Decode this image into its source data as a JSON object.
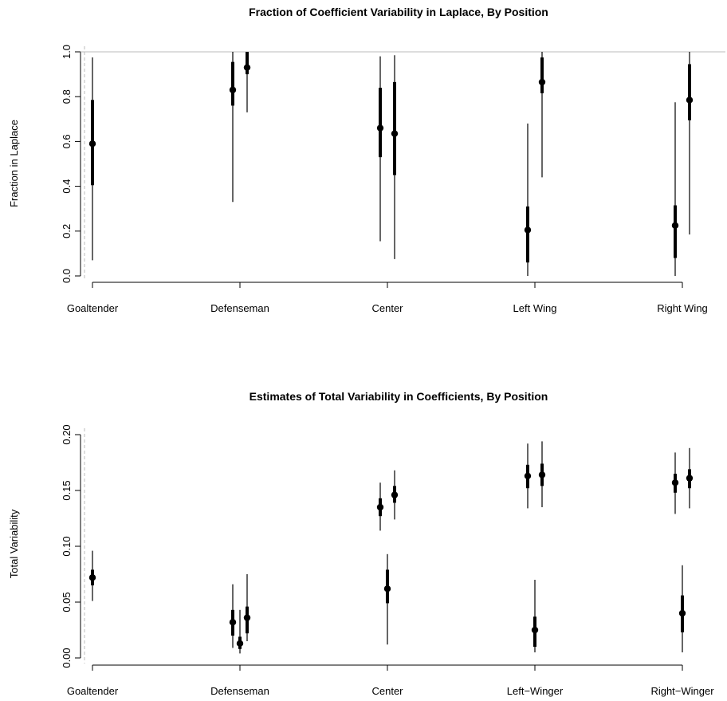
{
  "chart_data": [
    {
      "type": "scatter",
      "title": "Fraction of Coefficient Variability in Laplace, By Position",
      "xlabel": "",
      "ylabel": "Fraction in Laplace",
      "ylim": [
        0,
        1
      ],
      "yticks": [
        0.0,
        0.2,
        0.4,
        0.6,
        0.8,
        1.0
      ],
      "ytick_labels": [
        "0.0",
        "0.2",
        "0.4",
        "0.6",
        "0.8",
        "1.0"
      ],
      "categories": [
        "Goaltender",
        "Defenseman",
        "Center",
        "Left Wing",
        "Right Wing"
      ],
      "reference_line": 1.0,
      "points": [
        {
          "category": "Goaltender",
          "offset": 0,
          "estimate": 0.59,
          "inner": [
            0.405,
            0.785
          ],
          "outer": [
            0.07,
            0.975
          ]
        },
        {
          "category": "Defenseman",
          "offset": -1,
          "estimate": 0.83,
          "inner": [
            0.76,
            0.955
          ],
          "outer": [
            0.33,
            1.0
          ]
        },
        {
          "category": "Defenseman",
          "offset": 1,
          "estimate": 0.93,
          "inner": [
            0.9,
            1.0
          ],
          "outer": [
            0.73,
            1.0
          ]
        },
        {
          "category": "Center",
          "offset": -1,
          "estimate": 0.66,
          "inner": [
            0.53,
            0.84
          ],
          "outer": [
            0.155,
            0.98
          ]
        },
        {
          "category": "Center",
          "offset": 1,
          "estimate": 0.635,
          "inner": [
            0.45,
            0.865
          ],
          "outer": [
            0.075,
            0.985
          ]
        },
        {
          "category": "Left Wing",
          "offset": -1,
          "estimate": 0.205,
          "inner": [
            0.06,
            0.31
          ],
          "outer": [
            0.0,
            0.68
          ]
        },
        {
          "category": "Left Wing",
          "offset": 1,
          "estimate": 0.865,
          "inner": [
            0.815,
            0.975
          ],
          "outer": [
            0.44,
            1.0
          ]
        },
        {
          "category": "Right Wing",
          "offset": -1,
          "estimate": 0.225,
          "inner": [
            0.08,
            0.315
          ],
          "outer": [
            0.0,
            0.775
          ]
        },
        {
          "category": "Right Wing",
          "offset": 1,
          "estimate": 0.785,
          "inner": [
            0.695,
            0.945
          ],
          "outer": [
            0.185,
            1.0
          ]
        }
      ]
    },
    {
      "type": "scatter",
      "title": "Estimates of Total Variability in Coefficients, By Position",
      "xlabel": "",
      "ylabel": "Total Variability",
      "ylim": [
        0,
        0.2
      ],
      "yticks": [
        0.0,
        0.05,
        0.1,
        0.15,
        0.2
      ],
      "ytick_labels": [
        "0.00",
        "0.05",
        "0.10",
        "0.15",
        "0.20"
      ],
      "categories": [
        "Goaltender",
        "Defenseman",
        "Center",
        "Left−Winger",
        "Right−Winger"
      ],
      "points": [
        {
          "category": "Goaltender",
          "offset": 0,
          "estimate": 0.072,
          "inner": [
            0.065,
            0.079
          ],
          "outer": [
            0.051,
            0.096
          ]
        },
        {
          "category": "Defenseman",
          "offset": -1,
          "estimate": 0.032,
          "inner": [
            0.02,
            0.043
          ],
          "outer": [
            0.009,
            0.066
          ]
        },
        {
          "category": "Defenseman",
          "offset": 0,
          "estimate": 0.013,
          "inner": [
            0.008,
            0.019
          ],
          "outer": [
            0.004,
            0.043
          ]
        },
        {
          "category": "Defenseman",
          "offset": 1,
          "estimate": 0.036,
          "inner": [
            0.022,
            0.046
          ],
          "outer": [
            0.015,
            0.075
          ]
        },
        {
          "category": "Center",
          "offset": -1,
          "estimate": 0.135,
          "inner": [
            0.127,
            0.143
          ],
          "outer": [
            0.114,
            0.157
          ]
        },
        {
          "category": "Center",
          "offset": 1,
          "estimate": 0.146,
          "inner": [
            0.139,
            0.154
          ],
          "outer": [
            0.124,
            0.168
          ]
        },
        {
          "category": "Center",
          "offset": 0,
          "estimate": 0.062,
          "inner": [
            0.049,
            0.079
          ],
          "outer": [
            0.012,
            0.093
          ]
        },
        {
          "category": "Left−Winger",
          "offset": -1,
          "estimate": 0.163,
          "inner": [
            0.152,
            0.173
          ],
          "outer": [
            0.134,
            0.192
          ]
        },
        {
          "category": "Left−Winger",
          "offset": 1,
          "estimate": 0.164,
          "inner": [
            0.154,
            0.174
          ],
          "outer": [
            0.135,
            0.194
          ]
        },
        {
          "category": "Left−Winger",
          "offset": 0,
          "estimate": 0.025,
          "inner": [
            0.01,
            0.037
          ],
          "outer": [
            0.005,
            0.07
          ]
        },
        {
          "category": "Right−Winger",
          "offset": -1,
          "estimate": 0.157,
          "inner": [
            0.148,
            0.165
          ],
          "outer": [
            0.129,
            0.184
          ]
        },
        {
          "category": "Right−Winger",
          "offset": 1,
          "estimate": 0.161,
          "inner": [
            0.152,
            0.169
          ],
          "outer": [
            0.134,
            0.188
          ]
        },
        {
          "category": "Right−Winger",
          "offset": 0,
          "estimate": 0.04,
          "inner": [
            0.023,
            0.056
          ],
          "outer": [
            0.005,
            0.083
          ]
        }
      ]
    }
  ]
}
